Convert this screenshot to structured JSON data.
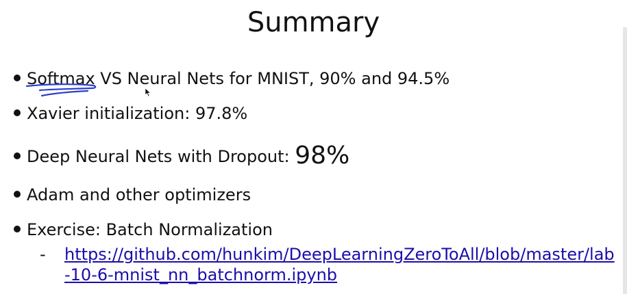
{
  "slide": {
    "title": "Summary",
    "bullets": [
      {
        "text": "Softmax VS Neural Nets for MNIST, 90% and 94.5%"
      },
      {
        "text": "Xavier initialization: 97.8%"
      },
      {
        "text": "Deep Neural Nets with Dropout: ",
        "emphasis": "98%"
      },
      {
        "text": "Adam and other optimizers"
      },
      {
        "text": "Exercise: Batch Normalization"
      }
    ],
    "sub_item": {
      "marker": "-",
      "link_text": "https://github.com/hunkim/DeepLearningZeroToAll/blob/master/lab-10-6-mnist_nn_batchnorm.ipynb"
    }
  },
  "colors": {
    "text": "#111111",
    "link": "#1a0dab",
    "annotation_ink": "#2a3ec9",
    "background": "#ffffff"
  },
  "icons": {
    "pointer": "mouse-cursor-icon",
    "annotation": "pen-underline-annotation"
  }
}
